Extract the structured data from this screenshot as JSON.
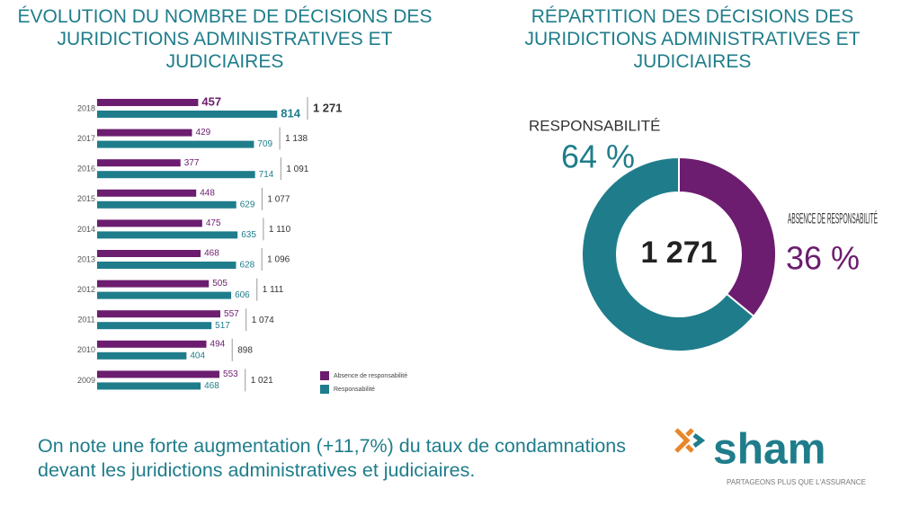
{
  "chart_data": [
    {
      "type": "hbar",
      "title": "ÉVOLUTION DU NOMBRE DE DÉCISIONS DES JURIDICTIONS ADMINISTRATIVES ET JUDICIAIRES",
      "categories": [
        "2018",
        "2017",
        "2016",
        "2015",
        "2014",
        "2013",
        "2012",
        "2011",
        "2010",
        "2009"
      ],
      "series": [
        {
          "name": "Absence de responsabilité",
          "color": "#6c1d6f",
          "values": [
            457,
            429,
            377,
            448,
            475,
            468,
            505,
            557,
            494,
            553
          ]
        },
        {
          "name": "Responsabilité",
          "color": "#1f7d8b",
          "values": [
            814,
            709,
            714,
            629,
            635,
            628,
            606,
            517,
            404,
            468
          ]
        }
      ],
      "totals": [
        1271,
        1138,
        1091,
        1077,
        1110,
        1096,
        1111,
        1074,
        898,
        1021
      ],
      "total_labels": [
        "1 271",
        "1 138",
        "1 091",
        "1 077",
        "1 110",
        "1 096",
        "1 111",
        "1 074",
        "898",
        "1 021"
      ]
    },
    {
      "type": "donut",
      "title": "RÉPARTITION DES DÉCISIONS DES JURIDICTIONS ADMINISTRATIVES ET JUDICIAIRES",
      "center_label": "1 271",
      "categories": [
        "ABSENCE DE RESPONSABILITÉ",
        "RESPONSABILITÉ"
      ],
      "values": [
        36,
        64
      ],
      "value_labels": [
        "36 %",
        "64 %"
      ],
      "colors": [
        "#6c1d6f",
        "#1f7d8b"
      ]
    }
  ],
  "note": "On note une forte augmentation (+11,7%) du taux de condamnations devant les juridictions administratives et judiciaires.",
  "logo": {
    "name": "sham",
    "tagline": "PARTAGEONS PLUS QUE L'ASSURANCE"
  }
}
